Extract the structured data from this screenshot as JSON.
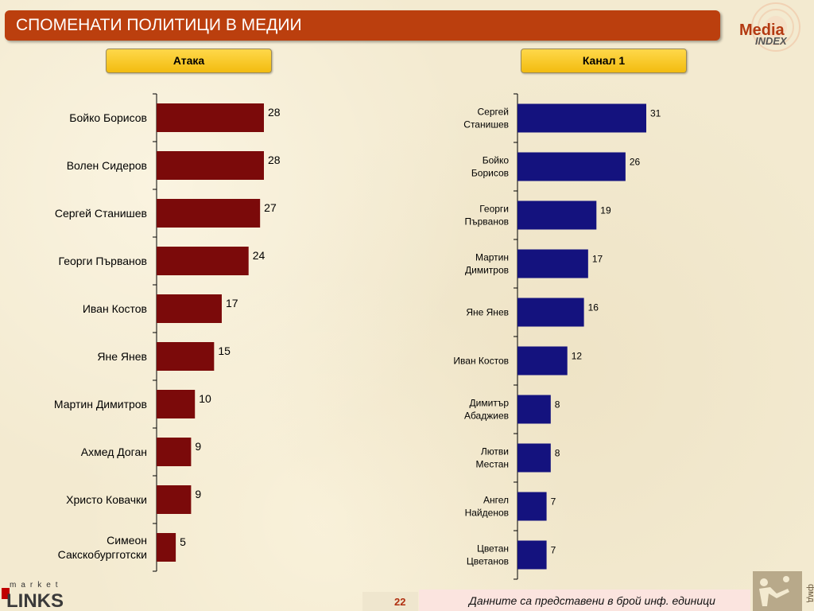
{
  "header": {
    "title": "СПОМЕНАТИ ПОЛИТИЦИ В МЕДИИ",
    "logo_text_1": "Media",
    "logo_text_2": "INDEX"
  },
  "colors": {
    "title_bar": "#bb3f0e",
    "left_bars": "#7b0a0a",
    "right_bars": "#14127e",
    "label_box": "#f5c518"
  },
  "chart_data": [
    {
      "type": "bar",
      "orientation": "horizontal",
      "title": "Атака",
      "categories": [
        "Бойко Борисов",
        "Волен Сидеров",
        "Сергей Станишев",
        "Георги Първанов",
        "Иван Костов",
        "Яне Янев",
        "Мартин Димитров",
        "Ахмед Доган",
        "Христо Ковачки",
        "Симеон\nСакскобургготски"
      ],
      "values": [
        28,
        28,
        27,
        24,
        17,
        15,
        10,
        9,
        9,
        5
      ],
      "xlim": [
        0,
        28
      ]
    },
    {
      "type": "bar",
      "orientation": "horizontal",
      "title": "Канал 1",
      "categories": [
        "Сергей\nСтанишев",
        "Бойко\nБорисов",
        "Георги\nПървaнов",
        "Мартин\nДимитров",
        "Яне Янев",
        "Иван Костов",
        "Димитър\nАбаджиев",
        "Лютви\nМестан",
        "Ангел\nНайденов",
        "Цветан\nЦветанов"
      ],
      "values": [
        31,
        26,
        19,
        17,
        16,
        12,
        8,
        8,
        7,
        7
      ],
      "xlim": [
        0,
        31
      ]
    }
  ],
  "footer": {
    "brand_top": "market",
    "brand_main": "LINKS",
    "page_number": "22",
    "note": "Данните са представени в брой инф. единици",
    "fmd_label": "фмд"
  }
}
